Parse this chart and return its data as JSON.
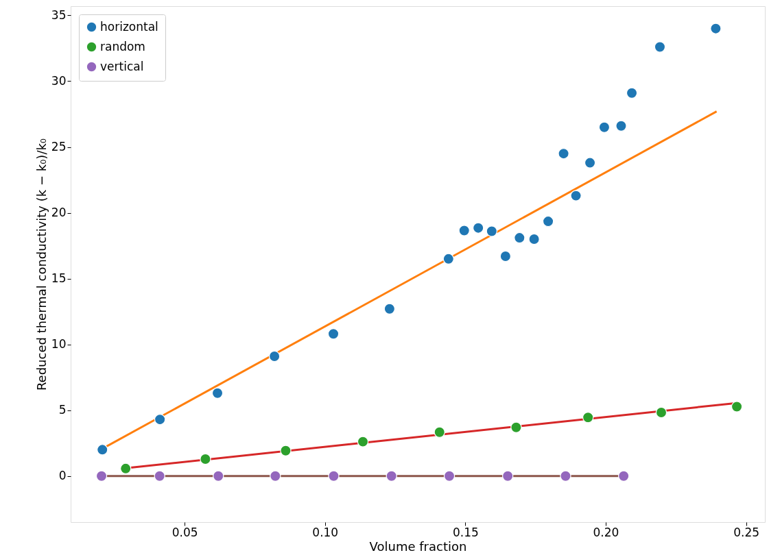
{
  "chart_data": {
    "type": "scatter",
    "xlabel": "Volume fraction",
    "ylabel": "Reduced thermal conductivity (k − k₀)/k₀",
    "xlim": [
      0.0094,
      0.2567
    ],
    "ylim": [
      -3.5,
      35.7
    ],
    "xticks": [
      {
        "value": 0.05,
        "label": "0.05"
      },
      {
        "value": 0.1,
        "label": "0.10"
      },
      {
        "value": 0.15,
        "label": "0.15"
      },
      {
        "value": 0.2,
        "label": "0.20"
      },
      {
        "value": 0.25,
        "label": "0.25"
      }
    ],
    "yticks": [
      0,
      5,
      10,
      15,
      20,
      25,
      30,
      35
    ],
    "grid": false,
    "legend": "top left",
    "marker": "circle",
    "series": [
      {
        "name": "horizontal",
        "color": "#1f77b4",
        "x": [
          0.0207,
          0.0412,
          0.0617,
          0.082,
          0.103,
          0.123,
          0.144,
          0.1496,
          0.1546,
          0.1594,
          0.1643,
          0.1693,
          0.1745,
          0.1795,
          0.185,
          0.1894,
          0.1944,
          0.1995,
          0.2055,
          0.2093,
          0.2193,
          0.2392
        ],
        "values": [
          2.0,
          4.3,
          6.3,
          9.1,
          10.8,
          12.7,
          16.5,
          18.65,
          18.85,
          18.6,
          16.7,
          18.1,
          18.0,
          19.35,
          24.5,
          21.3,
          23.8,
          26.5,
          26.6,
          29.1,
          32.6,
          34.0
        ]
      },
      {
        "name": "random",
        "color": "#2ca02c",
        "x": [
          0.029,
          0.0574,
          0.086,
          0.1135,
          0.1408,
          0.1681,
          0.1937,
          0.2198,
          0.2467
        ],
        "values": [
          0.57,
          1.29,
          1.93,
          2.61,
          3.33,
          3.7,
          4.45,
          4.83,
          5.27
        ]
      },
      {
        "name": "vertical",
        "color": "#9467bd",
        "x": [
          0.0204,
          0.0411,
          0.062,
          0.0823,
          0.1031,
          0.1237,
          0.1443,
          0.1651,
          0.1857,
          0.2064
        ],
        "values": [
          0,
          0,
          0,
          0,
          0,
          0,
          0,
          0,
          0,
          0
        ]
      },
      {
        "type": "line",
        "marker": "none",
        "line_style": "solid",
        "color": "#ff7f0e",
        "x": [
          0.02,
          0.2395
        ],
        "values": [
          2.0,
          27.7
        ]
      },
      {
        "type": "line",
        "marker": "none",
        "line_style": "solid",
        "color": "#d62728",
        "x": [
          0.029,
          0.2467
        ],
        "values": [
          0.6,
          5.55
        ]
      },
      {
        "type": "line",
        "marker": "none",
        "line_style": "solid",
        "color": "#8c564b",
        "x": [
          0.0204,
          0.2064
        ],
        "values": [
          0,
          0
        ]
      }
    ]
  }
}
